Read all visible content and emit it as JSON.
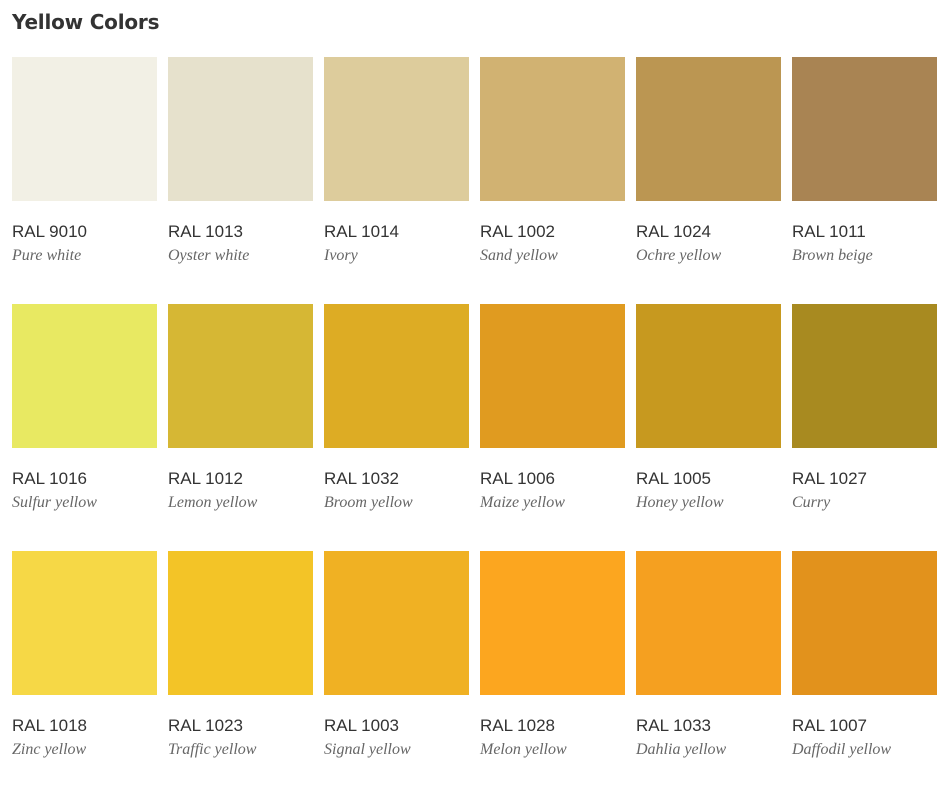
{
  "title": "Yellow Colors",
  "colors": [
    {
      "code": "RAL 9010",
      "name": "Pure white",
      "hex": "#F2F0E5"
    },
    {
      "code": "RAL 1013",
      "name": "Oyster white",
      "hex": "#E6E1CC"
    },
    {
      "code": "RAL 1014",
      "name": "Ivory",
      "hex": "#DDCC9C"
    },
    {
      "code": "RAL 1002",
      "name": "Sand yellow",
      "hex": "#D1B272"
    },
    {
      "code": "RAL 1024",
      "name": "Ochre yellow",
      "hex": "#BB9652"
    },
    {
      "code": "RAL 1011",
      "name": "Brown beige",
      "hex": "#A98453"
    },
    {
      "code": "RAL 1016",
      "name": "Sulfur yellow",
      "hex": "#E8E962"
    },
    {
      "code": "RAL 1012",
      "name": "Lemon yellow",
      "hex": "#D6B734"
    },
    {
      "code": "RAL 1032",
      "name": "Broom yellow",
      "hex": "#DDAC24"
    },
    {
      "code": "RAL 1006",
      "name": "Maize yellow",
      "hex": "#E09B20"
    },
    {
      "code": "RAL 1005",
      "name": "Honey yellow",
      "hex": "#C7991F"
    },
    {
      "code": "RAL 1027",
      "name": "Curry",
      "hex": "#A88A20"
    },
    {
      "code": "RAL 1018",
      "name": "Zinc yellow",
      "hex": "#F6D846"
    },
    {
      "code": "RAL 1023",
      "name": "Traffic yellow",
      "hex": "#F3C427"
    },
    {
      "code": "RAL 1003",
      "name": "Signal yellow",
      "hex": "#F0B123"
    },
    {
      "code": "RAL 1028",
      "name": "Melon yellow",
      "hex": "#FCA61F"
    },
    {
      "code": "RAL 1033",
      "name": "Dahlia yellow",
      "hex": "#F5A020"
    },
    {
      "code": "RAL 1007",
      "name": "Daffodil yellow",
      "hex": "#E2921C"
    }
  ]
}
